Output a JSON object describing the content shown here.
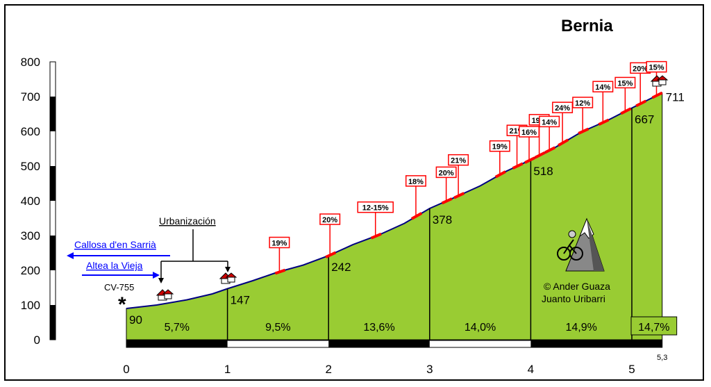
{
  "chart_data": {
    "type": "area",
    "title": "Bernia",
    "ylim": [
      0,
      800
    ],
    "y_ticks": [
      "0",
      "100",
      "200",
      "300",
      "400",
      "500",
      "600",
      "700",
      "800"
    ],
    "xlim": [
      0,
      5.3
    ],
    "x_ticks": [
      "0",
      "1",
      "2",
      "3",
      "4",
      "5"
    ],
    "x_end_label": "5,3",
    "profile": [
      {
        "km": 0.0,
        "alt": 90
      },
      {
        "km": 0.3,
        "alt": 100
      },
      {
        "km": 0.6,
        "alt": 115
      },
      {
        "km": 0.85,
        "alt": 132
      },
      {
        "km": 1.0,
        "alt": 147
      },
      {
        "km": 1.25,
        "alt": 170
      },
      {
        "km": 1.5,
        "alt": 195
      },
      {
        "km": 1.75,
        "alt": 215
      },
      {
        "km": 2.0,
        "alt": 242
      },
      {
        "km": 2.25,
        "alt": 275
      },
      {
        "km": 2.5,
        "alt": 302
      },
      {
        "km": 2.75,
        "alt": 335
      },
      {
        "km": 3.0,
        "alt": 378
      },
      {
        "km": 3.25,
        "alt": 410
      },
      {
        "km": 3.5,
        "alt": 443
      },
      {
        "km": 3.75,
        "alt": 484
      },
      {
        "km": 4.0,
        "alt": 518
      },
      {
        "km": 4.25,
        "alt": 555
      },
      {
        "km": 4.5,
        "alt": 598
      },
      {
        "km": 4.75,
        "alt": 630
      },
      {
        "km": 5.0,
        "alt": 667
      },
      {
        "km": 5.3,
        "alt": 711
      }
    ],
    "altitude_labels": [
      {
        "km": 0.0,
        "text": "90"
      },
      {
        "km": 1.0,
        "text": "147"
      },
      {
        "km": 2.0,
        "text": "242"
      },
      {
        "km": 3.0,
        "text": "378"
      },
      {
        "km": 4.0,
        "text": "518"
      },
      {
        "km": 5.0,
        "text": "667"
      },
      {
        "km": 5.3,
        "text": "711"
      }
    ],
    "segment_gradients": [
      "5,7%",
      "9,5%",
      "13,6%",
      "14,0%",
      "14,9%",
      "14,7%"
    ],
    "steep_ramps": [
      {
        "km": 1.5,
        "label": "19%"
      },
      {
        "km": 2.0,
        "label": "20%"
      },
      {
        "km": 2.45,
        "label": "12-15%"
      },
      {
        "km": 2.85,
        "label": "18%"
      },
      {
        "km": 3.15,
        "label": "20%"
      },
      {
        "km": 3.27,
        "label": "21%"
      },
      {
        "km": 3.68,
        "label": "19%"
      },
      {
        "km": 3.85,
        "label": "21%"
      },
      {
        "km": 3.97,
        "label": "16%"
      },
      {
        "km": 4.07,
        "label": "19%"
      },
      {
        "km": 4.17,
        "label": "14%"
      },
      {
        "km": 4.3,
        "label": "24%"
      },
      {
        "km": 4.5,
        "label": "12%"
      },
      {
        "km": 4.7,
        "label": "14%"
      },
      {
        "km": 4.92,
        "label": "15%"
      },
      {
        "km": 5.07,
        "label": "20%"
      },
      {
        "km": 5.23,
        "label": "15%"
      }
    ]
  },
  "annotations": {
    "urbanizacion": "Urbanización",
    "road_callosa": "Callosa d'en Sarrià",
    "road_altea": "Altea la Vieja",
    "start_road": "CV-755",
    "start_mark": "*",
    "credit_line1": "© Ander Guaza",
    "credit_line2": "Juanto Uribarri"
  },
  "colors": {
    "fill": "#99cc33",
    "profile_line": "#000080",
    "ramp": "#ff0000",
    "link": "#0000ff"
  },
  "icons": [
    "house-icon",
    "cyclist-mountain-icon"
  ]
}
